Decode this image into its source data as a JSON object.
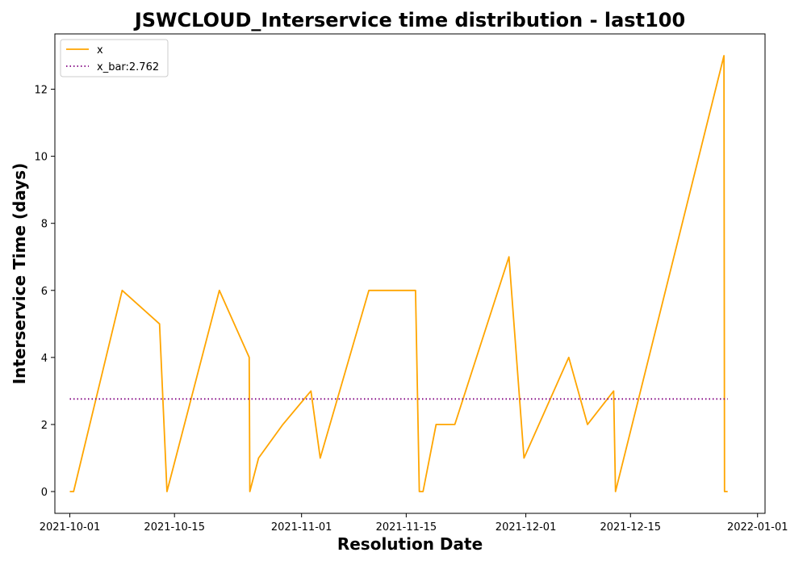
{
  "chart_data": {
    "type": "line",
    "title": "JSWCLOUD_Interservice time distribution - last100",
    "xlabel": "Resolution Date",
    "ylabel": "Interservice Time (days)",
    "xlim": [
      "2021-09-29",
      "2022-01-02"
    ],
    "ylim": [
      -0.65,
      13.65
    ],
    "xticks": [
      "2021-10-01",
      "2021-10-15",
      "2021-11-01",
      "2021-11-15",
      "2021-12-01",
      "2021-12-15",
      "2022-01-01"
    ],
    "yticks": [
      0,
      2,
      4,
      6,
      8,
      10,
      12
    ],
    "grid": false,
    "legend_position": "top-left",
    "series": [
      {
        "name": "x",
        "color": "#ffa500",
        "style": "solid",
        "points": [
          {
            "x": "2021-10-01",
            "y": 0
          },
          {
            "x": "2021-10-01T12:00",
            "y": 0
          },
          {
            "x": "2021-10-08",
            "y": 6
          },
          {
            "x": "2021-10-13",
            "y": 5
          },
          {
            "x": "2021-10-14",
            "y": 0
          },
          {
            "x": "2021-10-21",
            "y": 6
          },
          {
            "x": "2021-10-25",
            "y": 4
          },
          {
            "x": "2021-10-25T02:00",
            "y": 0
          },
          {
            "x": "2021-10-26T06:00",
            "y": 1
          },
          {
            "x": "2021-10-29T12:00",
            "y": 2
          },
          {
            "x": "2021-11-02T06:00",
            "y": 3
          },
          {
            "x": "2021-11-03T12:00",
            "y": 1
          },
          {
            "x": "2021-11-10",
            "y": 6
          },
          {
            "x": "2021-11-16T06:00",
            "y": 6
          },
          {
            "x": "2021-11-16T18:00",
            "y": 0
          },
          {
            "x": "2021-11-17T06:00",
            "y": 0
          },
          {
            "x": "2021-11-19",
            "y": 2
          },
          {
            "x": "2021-11-21T12:00",
            "y": 2
          },
          {
            "x": "2021-11-28T18:00",
            "y": 7
          },
          {
            "x": "2021-11-30T18:00",
            "y": 1
          },
          {
            "x": "2021-12-06T18:00",
            "y": 4
          },
          {
            "x": "2021-12-09T06:00",
            "y": 2
          },
          {
            "x": "2021-12-12T18:00",
            "y": 3
          },
          {
            "x": "2021-12-13",
            "y": 0
          },
          {
            "x": "2021-12-27T12:00",
            "y": 13
          },
          {
            "x": "2021-12-27T14:00",
            "y": 0
          },
          {
            "x": "2021-12-28",
            "y": 0
          }
        ]
      },
      {
        "name": "x_bar:2.762",
        "color": "#800080",
        "style": "dotted",
        "points": [
          {
            "x": "2021-10-01",
            "y": 2.762
          },
          {
            "x": "2021-12-28",
            "y": 2.762
          }
        ]
      }
    ]
  }
}
